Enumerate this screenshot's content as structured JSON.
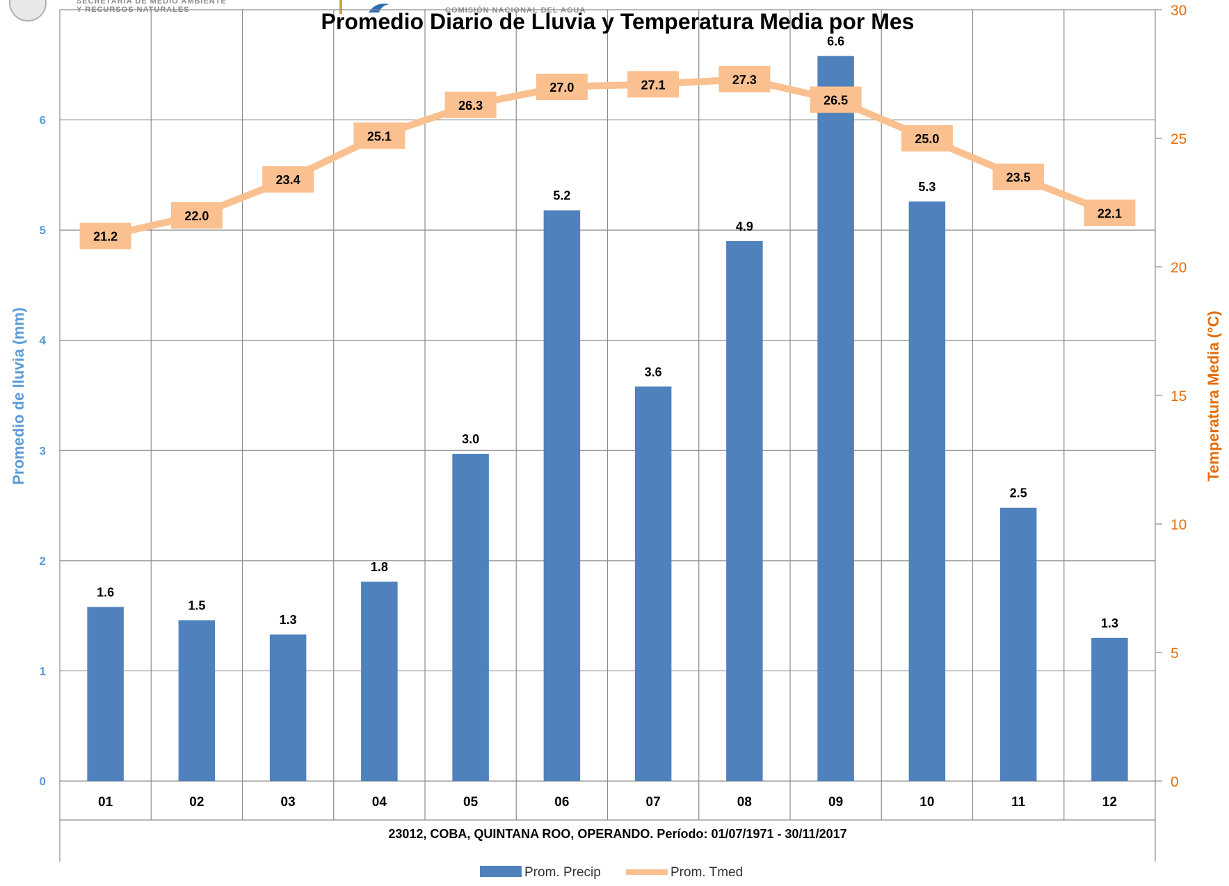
{
  "header": {
    "semarnat_line1": "SECRETARÍA DE MEDIO AMBIENTE",
    "semarnat_line2": "Y RECURSOS NATURALES",
    "conagua_text": "COMISIÓN NACIONAL DEL AGUA"
  },
  "chart_data": {
    "type": "bar",
    "title": "Promedio Diario de Lluvia y Temperatura Media por Mes",
    "xlabel": "23012, COBA, QUINTANA ROO, OPERANDO. Período: 01/07/1971 - 30/11/2017",
    "ylabel": "Promedio de lluvia (mm)",
    "y2label": "Temperatura Media (°C)",
    "categories": [
      "01",
      "02",
      "03",
      "04",
      "05",
      "06",
      "07",
      "08",
      "09",
      "10",
      "11",
      "12"
    ],
    "ylim": [
      0,
      7
    ],
    "y_ticks": [
      0,
      1,
      2,
      3,
      4,
      5,
      6
    ],
    "y2lim": [
      0,
      30
    ],
    "y2_ticks": [
      0,
      5,
      10,
      15,
      20,
      25,
      30
    ],
    "grid": true,
    "legend_position": "bottom",
    "series": [
      {
        "name": "Prom. Precip",
        "type": "bar",
        "axis": "left",
        "color": "#4f81bd",
        "values": [
          1.58,
          1.46,
          1.33,
          1.81,
          2.97,
          5.18,
          3.58,
          4.9,
          6.58,
          5.26,
          2.48,
          1.3
        ],
        "labels": [
          "1.6",
          "1.5",
          "1.3",
          "1.8",
          "3.0",
          "5.2",
          "3.6",
          "4.9",
          "6.6",
          "5.3",
          "2.5",
          "1.3"
        ]
      },
      {
        "name": "Prom. Tmed",
        "type": "line",
        "axis": "right",
        "color": "#fac090",
        "values": [
          21.2,
          22.0,
          23.4,
          25.1,
          26.3,
          27.0,
          27.1,
          27.3,
          26.5,
          25.0,
          23.5,
          22.1
        ],
        "labels": [
          "21.2",
          "22.0",
          "23.4",
          "25.1",
          "26.3",
          "27.0",
          "27.1",
          "27.3",
          "26.5",
          "25.0",
          "23.5",
          "22.1"
        ]
      }
    ],
    "colors": {
      "left_axis": "#5b9bd5",
      "right_axis": "#e46c0a",
      "grid": "#8c8c8c"
    }
  }
}
